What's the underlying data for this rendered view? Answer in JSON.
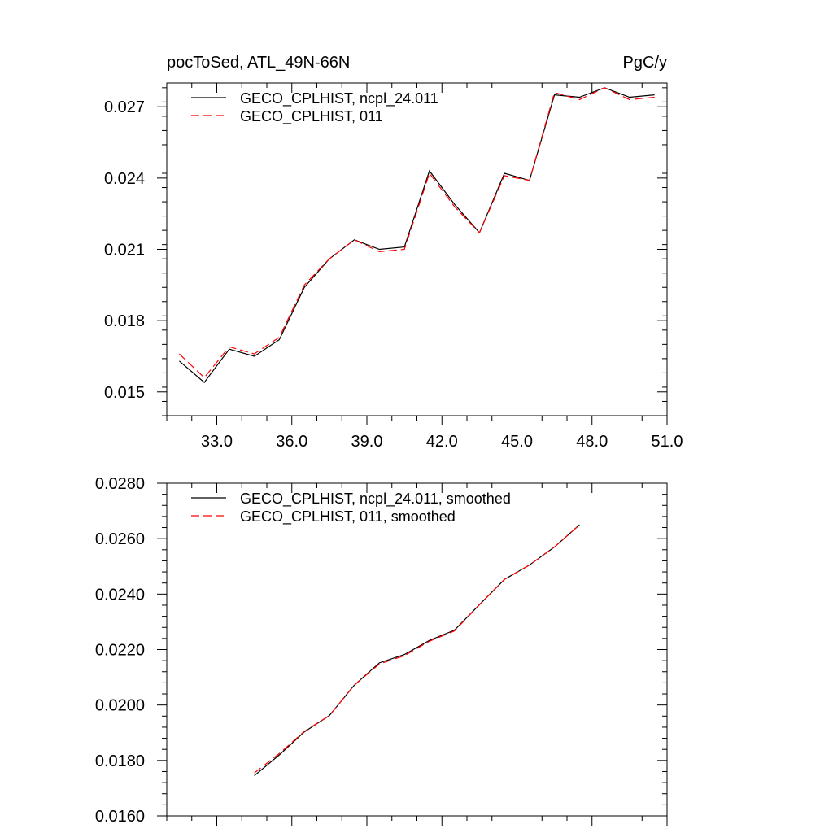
{
  "chart_data": [
    {
      "type": "line",
      "title_left": "pocToSed, ATL_49N-66N",
      "title_right": "PgC/y",
      "xlim": [
        31.0,
        51.0
      ],
      "ylim": [
        0.014,
        0.028
      ],
      "xticks": [
        33.0,
        36.0,
        39.0,
        42.0,
        45.0,
        48.0,
        51.0
      ],
      "xtick_labels": [
        "33.0",
        "36.0",
        "39.0",
        "42.0",
        "45.0",
        "48.0",
        "51.0"
      ],
      "yticks": [
        0.015,
        0.018,
        0.021,
        0.024,
        0.027
      ],
      "ytick_labels": [
        "0.015",
        "0.018",
        "0.021",
        "0.024",
        "0.027"
      ],
      "legend_position": "top-left",
      "x": [
        31.5,
        32.5,
        33.5,
        34.5,
        35.5,
        36.5,
        37.5,
        38.5,
        39.5,
        40.5,
        41.5,
        42.5,
        43.5,
        44.5,
        45.5,
        46.5,
        47.5,
        48.5,
        49.5,
        50.5
      ],
      "series": [
        {
          "name": "GECO_CPLHIST, ncpl_24.011",
          "color": "#000000",
          "style": "solid",
          "values": [
            0.0163,
            0.0154,
            0.0168,
            0.0165,
            0.0172,
            0.0194,
            0.0206,
            0.0214,
            0.021,
            0.0211,
            0.0243,
            0.0229,
            0.0217,
            0.0242,
            0.0239,
            0.0275,
            0.0274,
            0.0278,
            0.0274,
            0.0275
          ]
        },
        {
          "name": "GECO_CPLHIST, 011",
          "color": "#ff0000",
          "style": "dashed",
          "values": [
            0.0166,
            0.0156,
            0.0169,
            0.0166,
            0.0173,
            0.0195,
            0.0206,
            0.0214,
            0.0209,
            0.021,
            0.0242,
            0.0228,
            0.0217,
            0.0241,
            0.0239,
            0.0276,
            0.0273,
            0.0278,
            0.0273,
            0.0274
          ]
        }
      ]
    },
    {
      "type": "line",
      "xlim": [
        31.0,
        51.0
      ],
      "ylim": [
        0.016,
        0.028
      ],
      "xticks": [
        33.0,
        36.0,
        39.0,
        42.0,
        45.0,
        48.0,
        51.0
      ],
      "yticks": [
        0.016,
        0.018,
        0.02,
        0.022,
        0.024,
        0.026,
        0.028
      ],
      "ytick_labels": [
        "0.0160",
        "0.0180",
        "0.0200",
        "0.0220",
        "0.0240",
        "0.0260",
        "0.0280"
      ],
      "legend_position": "top-left",
      "x": [
        34.5,
        35.5,
        36.5,
        37.5,
        38.5,
        39.5,
        40.5,
        41.5,
        42.5,
        43.5,
        44.5,
        45.5,
        46.5,
        47.5
      ],
      "series": [
        {
          "name": "GECO_CPLHIST, ncpl_24.011, smoothed",
          "color": "#000000",
          "style": "solid",
          "values": [
            0.01745,
            0.0182,
            0.01903,
            0.01962,
            0.02072,
            0.02152,
            0.02182,
            0.02233,
            0.0227,
            0.02362,
            0.02453,
            0.02505,
            0.0257,
            0.0265
          ]
        },
        {
          "name": "GECO_CPLHIST, 011, smoothed",
          "color": "#ff0000",
          "style": "dashed",
          "values": [
            0.01755,
            0.01825,
            0.01905,
            0.01962,
            0.02072,
            0.02148,
            0.02178,
            0.0223,
            0.02267,
            0.02362,
            0.02453,
            0.02505,
            0.0257,
            0.0265
          ]
        }
      ]
    }
  ]
}
